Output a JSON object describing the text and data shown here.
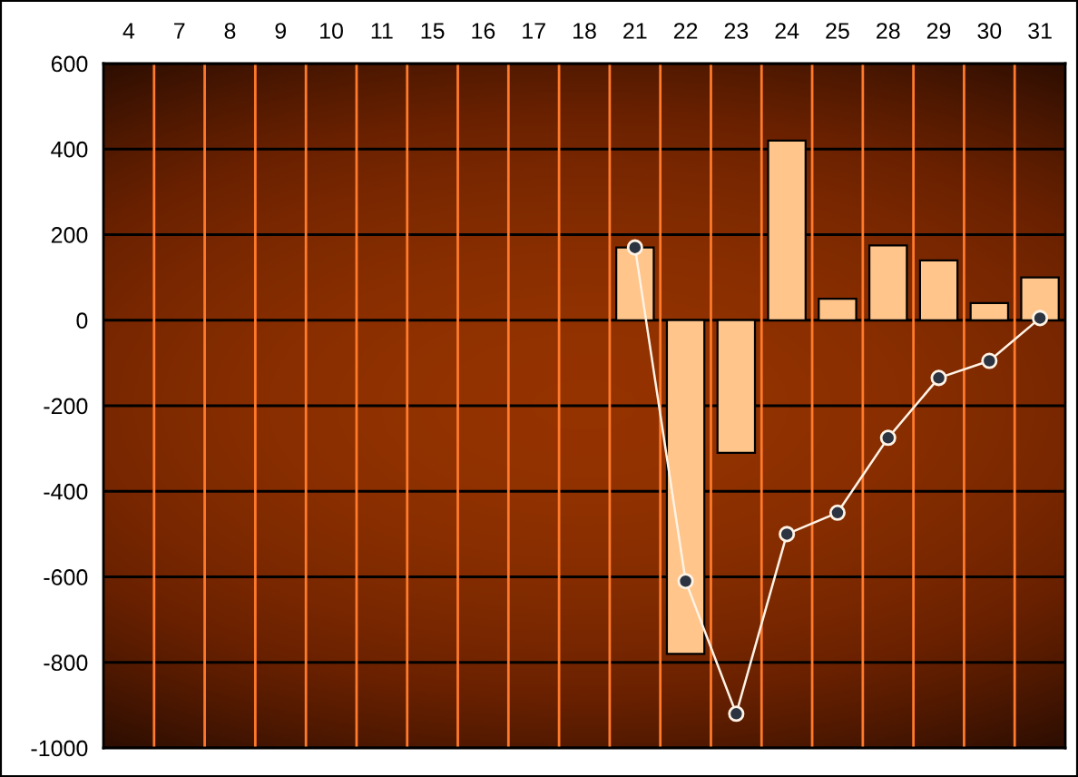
{
  "chart_data": {
    "type": "bar",
    "categories": [
      "4",
      "7",
      "8",
      "9",
      "10",
      "11",
      "15",
      "16",
      "17",
      "18",
      "21",
      "22",
      "23",
      "24",
      "25",
      "28",
      "29",
      "30",
      "31"
    ],
    "series": [
      {
        "color": "#ffc58a",
        "values": [
          null,
          null,
          null,
          null,
          null,
          null,
          null,
          null,
          null,
          null,
          170,
          -780,
          -310,
          420,
          50,
          175,
          140,
          40,
          100
        ]
      },
      {
        "type": "line",
        "color": "#fff3e6",
        "marker": "circle",
        "values": [
          null,
          null,
          null,
          null,
          null,
          null,
          null,
          null,
          null,
          null,
          170,
          -610,
          -920,
          -500,
          -450,
          -275,
          -135,
          -95,
          5
        ]
      }
    ],
    "ylim": [
      -1000,
      600
    ],
    "yticks": [
      -1000,
      -800,
      -600,
      -400,
      -200,
      0,
      200,
      400,
      600
    ],
    "grid": true
  }
}
